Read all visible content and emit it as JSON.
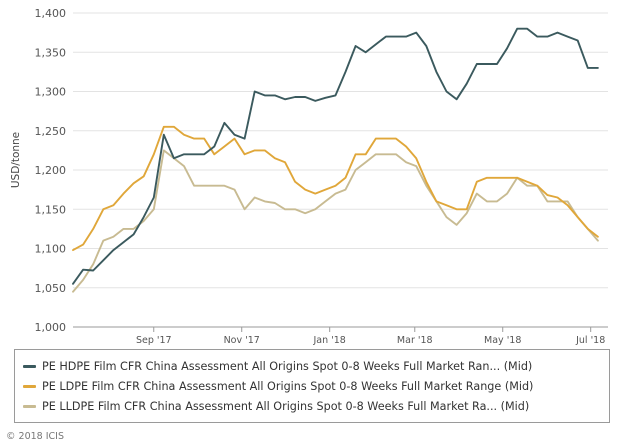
{
  "chart_data": {
    "type": "line",
    "title": "",
    "xlabel": "",
    "ylabel": "USD/tonne",
    "ylim": [
      1000,
      1400
    ],
    "yticks": [
      1000,
      1050,
      1100,
      1150,
      1200,
      1250,
      1300,
      1350,
      1400
    ],
    "ytick_labels": [
      "1,000",
      "1,050",
      "1,100",
      "1,150",
      "1,200",
      "1,250",
      "1,300",
      "1,350",
      "1,400"
    ],
    "xlim": [
      "2017-07-07",
      "2018-07-13"
    ],
    "xticks": [
      {
        "label": "Sep '17",
        "date": "2017-09-01"
      },
      {
        "label": "Nov '17",
        "date": "2017-11-01"
      },
      {
        "label": "Jan '18",
        "date": "2018-01-01"
      },
      {
        "label": "Mar '18",
        "date": "2018-03-01"
      },
      {
        "label": "May '18",
        "date": "2018-05-01"
      },
      {
        "label": "Jul '18",
        "date": "2018-07-01"
      }
    ],
    "grid": "horizontal",
    "legend_position": "bottom",
    "series": [
      {
        "name": "PE HDPE Film CFR China Assessment All Origins Spot 0-8 Weeks Full Market Ran... (Mid)",
        "color": "#3b5a5e",
        "points": [
          [
            "2017-07-07",
            1055
          ],
          [
            "2017-07-14",
            1073
          ],
          [
            "2017-07-21",
            1072
          ],
          [
            "2017-07-28",
            1085
          ],
          [
            "2017-08-04",
            1098
          ],
          [
            "2017-08-11",
            1108
          ],
          [
            "2017-08-18",
            1118
          ],
          [
            "2017-08-25",
            1140
          ],
          [
            "2017-09-01",
            1165
          ],
          [
            "2017-09-08",
            1245
          ],
          [
            "2017-09-15",
            1215
          ],
          [
            "2017-09-22",
            1220
          ],
          [
            "2017-09-29",
            1220
          ],
          [
            "2017-10-06",
            1220
          ],
          [
            "2017-10-13",
            1230
          ],
          [
            "2017-10-20",
            1260
          ],
          [
            "2017-10-27",
            1245
          ],
          [
            "2017-11-03",
            1240
          ],
          [
            "2017-11-10",
            1300
          ],
          [
            "2017-11-17",
            1295
          ],
          [
            "2017-11-24",
            1295
          ],
          [
            "2017-12-01",
            1290
          ],
          [
            "2017-12-08",
            1293
          ],
          [
            "2017-12-15",
            1293
          ],
          [
            "2017-12-22",
            1288
          ],
          [
            "2017-12-29",
            1292
          ],
          [
            "2018-01-05",
            1295
          ],
          [
            "2018-01-12",
            1325
          ],
          [
            "2018-01-19",
            1358
          ],
          [
            "2018-01-26",
            1350
          ],
          [
            "2018-02-02",
            1360
          ],
          [
            "2018-02-09",
            1370
          ],
          [
            "2018-02-16",
            1370
          ],
          [
            "2018-02-23",
            1370
          ],
          [
            "2018-03-02",
            1375
          ],
          [
            "2018-03-09",
            1358
          ],
          [
            "2018-03-16",
            1325
          ],
          [
            "2018-03-23",
            1300
          ],
          [
            "2018-03-30",
            1290
          ],
          [
            "2018-04-06",
            1310
          ],
          [
            "2018-04-13",
            1335
          ],
          [
            "2018-04-20",
            1335
          ],
          [
            "2018-04-27",
            1335
          ],
          [
            "2018-05-04",
            1355
          ],
          [
            "2018-05-11",
            1380
          ],
          [
            "2018-05-18",
            1380
          ],
          [
            "2018-05-25",
            1370
          ],
          [
            "2018-06-01",
            1370
          ],
          [
            "2018-06-08",
            1375
          ],
          [
            "2018-06-15",
            1370
          ],
          [
            "2018-06-22",
            1365
          ],
          [
            "2018-06-29",
            1330
          ],
          [
            "2018-07-06",
            1330
          ]
        ]
      },
      {
        "name": "PE LDPE Film CFR China Assessment All Origins Spot 0-8 Weeks Full Market Range (Mid)",
        "color": "#e0a73a",
        "points": [
          [
            "2017-07-07",
            1098
          ],
          [
            "2017-07-14",
            1105
          ],
          [
            "2017-07-21",
            1125
          ],
          [
            "2017-07-28",
            1150
          ],
          [
            "2017-08-04",
            1155
          ],
          [
            "2017-08-11",
            1170
          ],
          [
            "2017-08-18",
            1183
          ],
          [
            "2017-08-25",
            1192
          ],
          [
            "2017-09-01",
            1220
          ],
          [
            "2017-09-08",
            1255
          ],
          [
            "2017-09-15",
            1255
          ],
          [
            "2017-09-22",
            1245
          ],
          [
            "2017-09-29",
            1240
          ],
          [
            "2017-10-06",
            1240
          ],
          [
            "2017-10-13",
            1220
          ],
          [
            "2017-10-20",
            1230
          ],
          [
            "2017-10-27",
            1240
          ],
          [
            "2017-11-03",
            1220
          ],
          [
            "2017-11-10",
            1225
          ],
          [
            "2017-11-17",
            1225
          ],
          [
            "2017-11-24",
            1215
          ],
          [
            "2017-12-01",
            1210
          ],
          [
            "2017-12-08",
            1185
          ],
          [
            "2017-12-15",
            1175
          ],
          [
            "2017-12-22",
            1170
          ],
          [
            "2017-12-29",
            1175
          ],
          [
            "2018-01-05",
            1180
          ],
          [
            "2018-01-12",
            1190
          ],
          [
            "2018-01-19",
            1220
          ],
          [
            "2018-01-26",
            1220
          ],
          [
            "2018-02-02",
            1240
          ],
          [
            "2018-02-09",
            1240
          ],
          [
            "2018-02-16",
            1240
          ],
          [
            "2018-02-23",
            1230
          ],
          [
            "2018-03-02",
            1215
          ],
          [
            "2018-03-09",
            1185
          ],
          [
            "2018-03-16",
            1160
          ],
          [
            "2018-03-23",
            1155
          ],
          [
            "2018-03-30",
            1150
          ],
          [
            "2018-04-06",
            1150
          ],
          [
            "2018-04-13",
            1185
          ],
          [
            "2018-04-20",
            1190
          ],
          [
            "2018-04-27",
            1190
          ],
          [
            "2018-05-04",
            1190
          ],
          [
            "2018-05-11",
            1190
          ],
          [
            "2018-05-18",
            1185
          ],
          [
            "2018-05-25",
            1180
          ],
          [
            "2018-06-01",
            1168
          ],
          [
            "2018-06-08",
            1165
          ],
          [
            "2018-06-15",
            1155
          ],
          [
            "2018-06-22",
            1140
          ],
          [
            "2018-06-29",
            1125
          ],
          [
            "2018-07-06",
            1115
          ]
        ]
      },
      {
        "name": "PE LLDPE Film CFR China Assessment All Origins Spot 0-8 Weeks Full Market Ra... (Mid)",
        "color": "#c8bb92",
        "points": [
          [
            "2017-07-07",
            1045
          ],
          [
            "2017-07-14",
            1060
          ],
          [
            "2017-07-21",
            1080
          ],
          [
            "2017-07-28",
            1110
          ],
          [
            "2017-08-04",
            1115
          ],
          [
            "2017-08-11",
            1125
          ],
          [
            "2017-08-18",
            1125
          ],
          [
            "2017-08-25",
            1135
          ],
          [
            "2017-09-01",
            1150
          ],
          [
            "2017-09-08",
            1225
          ],
          [
            "2017-09-15",
            1215
          ],
          [
            "2017-09-22",
            1205
          ],
          [
            "2017-09-29",
            1180
          ],
          [
            "2017-10-06",
            1180
          ],
          [
            "2017-10-13",
            1180
          ],
          [
            "2017-10-20",
            1180
          ],
          [
            "2017-10-27",
            1175
          ],
          [
            "2017-11-03",
            1150
          ],
          [
            "2017-11-10",
            1165
          ],
          [
            "2017-11-17",
            1160
          ],
          [
            "2017-11-24",
            1158
          ],
          [
            "2017-12-01",
            1150
          ],
          [
            "2017-12-08",
            1150
          ],
          [
            "2017-12-15",
            1145
          ],
          [
            "2017-12-22",
            1150
          ],
          [
            "2017-12-29",
            1160
          ],
          [
            "2018-01-05",
            1170
          ],
          [
            "2018-01-12",
            1175
          ],
          [
            "2018-01-19",
            1200
          ],
          [
            "2018-01-26",
            1210
          ],
          [
            "2018-02-02",
            1220
          ],
          [
            "2018-02-09",
            1220
          ],
          [
            "2018-02-16",
            1220
          ],
          [
            "2018-02-23",
            1210
          ],
          [
            "2018-03-02",
            1205
          ],
          [
            "2018-03-09",
            1180
          ],
          [
            "2018-03-16",
            1160
          ],
          [
            "2018-03-23",
            1140
          ],
          [
            "2018-03-30",
            1130
          ],
          [
            "2018-04-06",
            1145
          ],
          [
            "2018-04-13",
            1170
          ],
          [
            "2018-04-20",
            1160
          ],
          [
            "2018-04-27",
            1160
          ],
          [
            "2018-05-04",
            1170
          ],
          [
            "2018-05-11",
            1190
          ],
          [
            "2018-05-18",
            1180
          ],
          [
            "2018-05-25",
            1180
          ],
          [
            "2018-06-01",
            1160
          ],
          [
            "2018-06-08",
            1160
          ],
          [
            "2018-06-15",
            1160
          ],
          [
            "2018-06-22",
            1140
          ],
          [
            "2018-06-29",
            1125
          ],
          [
            "2018-07-06",
            1110
          ]
        ]
      }
    ]
  },
  "copyright": "© 2018 ICIS"
}
